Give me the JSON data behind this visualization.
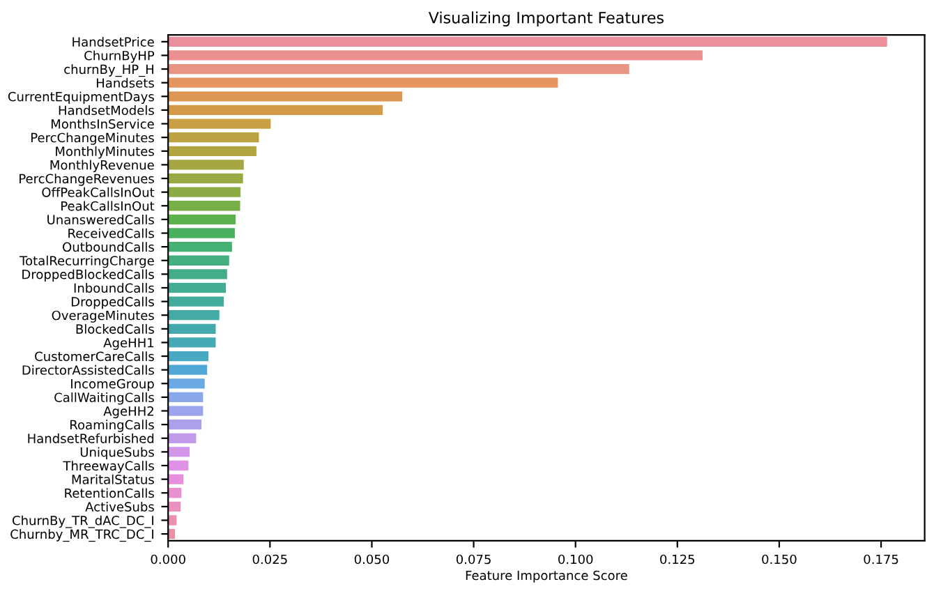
{
  "chart_data": {
    "type": "bar",
    "orientation": "horizontal",
    "title": "Visualizing Important Features",
    "xlabel": "Feature Importance Score",
    "categories": [
      "HandsetPrice",
      "ChurnByHP",
      "churnBy_HP_H",
      "Handsets",
      "CurrentEquipmentDays",
      "HandsetModels",
      "MonthsInService",
      "PercChangeMinutes",
      "MonthlyMinutes",
      "MonthlyRevenue",
      "PercChangeRevenues",
      "OffPeakCallsInOut",
      "PeakCallsInOut",
      "UnansweredCalls",
      "ReceivedCalls",
      "OutboundCalls",
      "TotalRecurringCharge",
      "DroppedBlockedCalls",
      "InboundCalls",
      "DroppedCalls",
      "OverageMinutes",
      "BlockedCalls",
      "AgeHH1",
      "CustomerCareCalls",
      "DirectorAssistedCalls",
      "IncomeGroup",
      "CallWaitingCalls",
      "AgeHH2",
      "RoamingCalls",
      "HandsetRefurbished",
      "UniqueSubs",
      "ThreewayCalls",
      "MaritalStatus",
      "RetentionCalls",
      "ActiveSubs",
      "ChurnBy_TR_dAC_DC_I",
      "Churnby_MR_TRC_DC_I"
    ],
    "values": [
      0.1766,
      0.1313,
      0.1133,
      0.0958,
      0.0576,
      0.0528,
      0.0253,
      0.0224,
      0.0218,
      0.0187,
      0.0185,
      0.0179,
      0.0178,
      0.0167,
      0.0165,
      0.0158,
      0.0151,
      0.0146,
      0.0143,
      0.0138,
      0.0127,
      0.0118,
      0.0118,
      0.01,
      0.0097,
      0.0091,
      0.0087,
      0.0087,
      0.0083,
      0.007,
      0.0054,
      0.0051,
      0.0039,
      0.0034,
      0.0032,
      0.0022,
      0.0018
    ],
    "colors": [
      "#ea8f9b",
      "#ea9190",
      "#e99584",
      "#e49560",
      "#dd9652",
      "#d49a48",
      "#c9a044",
      "#bca242",
      "#b1a542",
      "#a6a742",
      "#9aa943",
      "#8bac44",
      "#77ae46",
      "#5cb24d",
      "#48b160",
      "#44b072",
      "#43ae80",
      "#43ad8b",
      "#42ac94",
      "#42ab9c",
      "#43aaa4",
      "#44a9ac",
      "#46a9b6",
      "#49a8c3",
      "#4ea7d4",
      "#6aa9e4",
      "#89a8ea",
      "#9ca5ec",
      "#ae9fec",
      "#c19aea",
      "#d196e8",
      "#de91e5",
      "#e68fdc",
      "#e88fcd",
      "#e990be",
      "#ea91b0",
      "#ea90a4"
    ],
    "xlim": [
      0,
      0.1857
    ],
    "xticks": [
      {
        "value": 0,
        "label": "0.000"
      },
      {
        "value": 0.025,
        "label": "0.025"
      },
      {
        "value": 0.05,
        "label": "0.050"
      },
      {
        "value": 0.075,
        "label": "0.075"
      },
      {
        "value": 0.1,
        "label": "0.100"
      },
      {
        "value": 0.125,
        "label": "0.125"
      },
      {
        "value": 0.15,
        "label": "0.150"
      },
      {
        "value": 0.175,
        "label": "0.175"
      }
    ],
    "grid": false
  }
}
